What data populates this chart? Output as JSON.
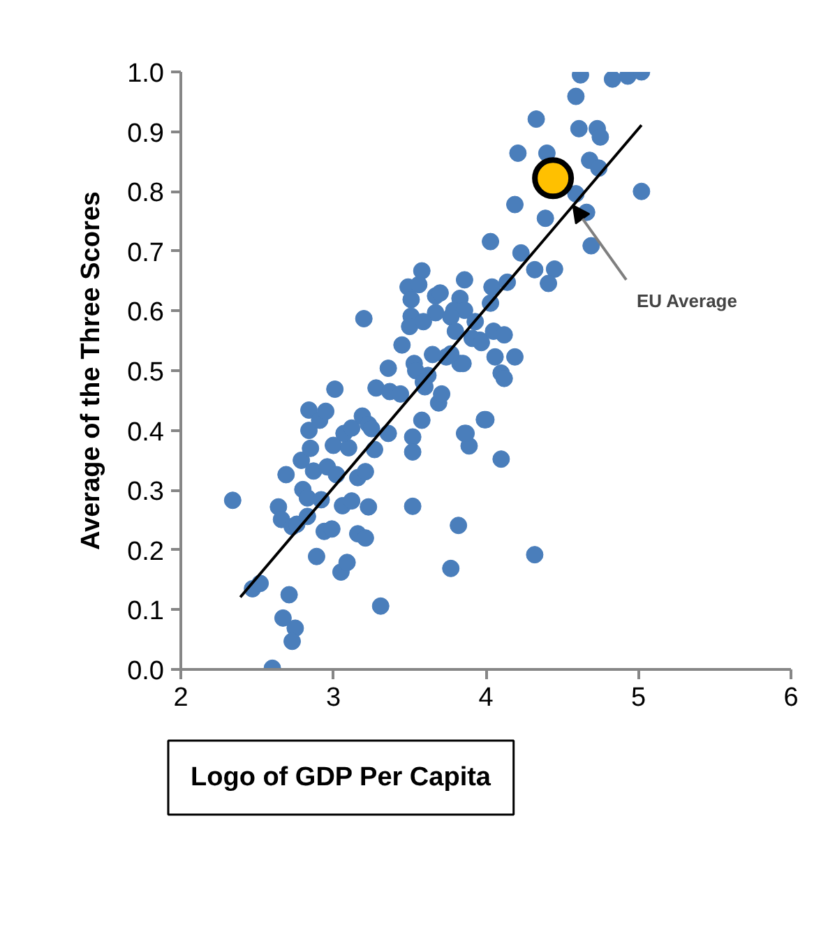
{
  "chart_data": {
    "type": "scatter",
    "xlabel": "Logo of GDP Per Capita",
    "ylabel": "Average of the Three Scores",
    "xlim": [
      2,
      6
    ],
    "ylim": [
      0,
      1
    ],
    "xticks": [
      2,
      3,
      4,
      5,
      6
    ],
    "yticks": [
      {
        "value": 0,
        "label": "0.0"
      },
      0.1,
      0.2,
      0.3,
      0.4,
      0.5,
      0.6,
      0.7,
      0.8,
      0.9,
      {
        "value": 1,
        "label": "1.0"
      }
    ],
    "grid": false,
    "annotations": [
      {
        "text": "EU Average",
        "x": 4.57,
        "y": 0.777
      }
    ],
    "series": [
      {
        "color": "#4a7ebb",
        "marker": "circle",
        "x": [
          2.34,
          2.47,
          2.52,
          2.6,
          2.71,
          2.67,
          2.75,
          2.73,
          2.69,
          2.64,
          2.66,
          2.73,
          2.76,
          2.83,
          2.8,
          2.83,
          2.79,
          2.87,
          2.85,
          2.84,
          2.84,
          2.91,
          2.95,
          2.92,
          2.96,
          3.01,
          3.0,
          3.1,
          3.02,
          3.07,
          3.12,
          3.19,
          3.23,
          2.89,
          2.94,
          2.99,
          3.05,
          3.09,
          3.06,
          3.12,
          3.16,
          3.21,
          3.16,
          3.21,
          3.23,
          3.31,
          3.27,
          3.28,
          3.36,
          3.37,
          3.44,
          3.36,
          3.25,
          3.45,
          3.52,
          3.52,
          3.58,
          3.52,
          3.69,
          3.71,
          3.6,
          3.53,
          3.62,
          3.77,
          3.82,
          3.86,
          3.89,
          3.99,
          3.83,
          3.74,
          3.85,
          4.06,
          4.19,
          4.1,
          4.12,
          4.0,
          3.87,
          4.1,
          4.32,
          3.2,
          3.58,
          3.49,
          3.56,
          3.51,
          3.86,
          3.67,
          3.7,
          3.83,
          3.79,
          3.51,
          3.67,
          3.86,
          3.5,
          3.59,
          3.77,
          3.93,
          3.8,
          3.96,
          3.54,
          3.65,
          3.77,
          3.91,
          3.97,
          3.59,
          4.62,
          4.59,
          4.83,
          4.93,
          5.02,
          4.33,
          4.61,
          4.73,
          4.75,
          4.21,
          4.4,
          4.68,
          4.74,
          4.59,
          5.02,
          4.19,
          4.39,
          4.66,
          4.69,
          4.03,
          4.23,
          4.32,
          4.45,
          4.41,
          4.04,
          4.14,
          4.03,
          4.05,
          4.12
        ],
        "values": [
          0.283,
          0.135,
          0.144,
          0.002,
          0.125,
          0.086,
          0.069,
          0.047,
          0.326,
          0.272,
          0.251,
          0.239,
          0.243,
          0.256,
          0.301,
          0.287,
          0.35,
          0.332,
          0.37,
          0.4,
          0.434,
          0.417,
          0.432,
          0.284,
          0.339,
          0.469,
          0.375,
          0.371,
          0.326,
          0.395,
          0.404,
          0.424,
          0.41,
          0.189,
          0.231,
          0.235,
          0.163,
          0.179,
          0.274,
          0.282,
          0.321,
          0.331,
          0.227,
          0.22,
          0.272,
          0.106,
          0.368,
          0.471,
          0.504,
          0.465,
          0.461,
          0.395,
          0.403,
          0.543,
          0.389,
          0.364,
          0.417,
          0.273,
          0.446,
          0.461,
          0.473,
          0.512,
          0.492,
          0.169,
          0.241,
          0.395,
          0.374,
          0.418,
          0.512,
          0.523,
          0.512,
          0.523,
          0.523,
          0.496,
          0.487,
          0.418,
          0.395,
          0.352,
          0.192,
          0.587,
          0.667,
          0.64,
          0.644,
          0.619,
          0.652,
          0.625,
          0.63,
          0.621,
          0.601,
          0.591,
          0.597,
          0.601,
          0.574,
          0.582,
          0.59,
          0.582,
          0.566,
          0.551,
          0.5,
          0.527,
          0.528,
          0.554,
          0.547,
          0.481,
          0.995,
          0.959,
          0.988,
          0.993,
          1.0,
          0.921,
          0.905,
          0.905,
          0.891,
          0.864,
          0.864,
          0.852,
          0.839,
          0.796,
          0.8,
          0.778,
          0.755,
          0.765,
          0.709,
          0.716,
          0.697,
          0.669,
          0.67,
          0.646,
          0.64,
          0.648,
          0.613,
          0.566,
          0.56
        ]
      },
      {
        "type": "line",
        "color": "#000000",
        "x": [
          2.39,
          5.02
        ],
        "values": [
          0.121,
          0.911
        ]
      },
      {
        "type": "scatter",
        "color": "#ffc000",
        "marker": "circle",
        "x": [
          4.44
        ],
        "values": [
          0.822
        ]
      }
    ]
  }
}
